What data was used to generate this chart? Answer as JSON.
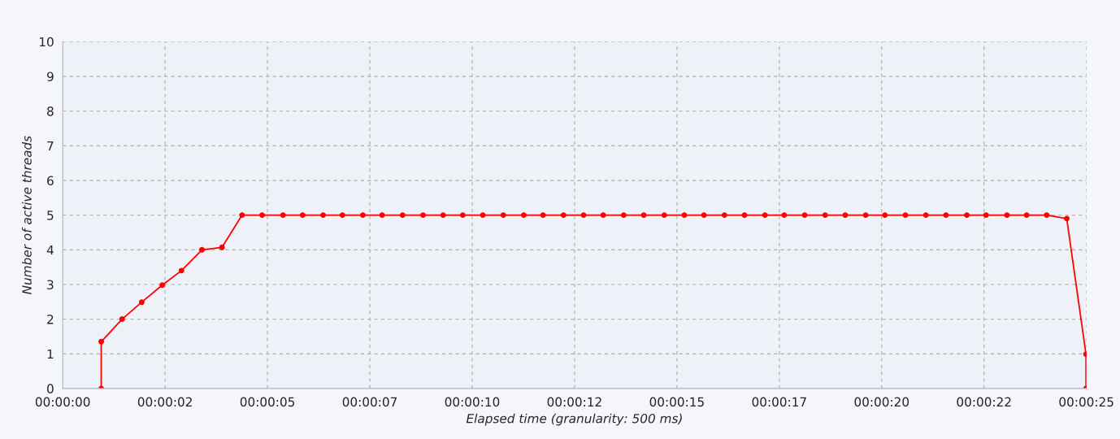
{
  "chart_data": {
    "type": "line",
    "xlabel": "Elapsed time (granularity: 500 ms)",
    "ylabel": "Number of active threads",
    "xlim": [
      0,
      25
    ],
    "ylim": [
      0,
      10
    ],
    "xticks": [
      {
        "value": 0,
        "label": "00:00:00"
      },
      {
        "value": 2.5,
        "label": "00:00:02"
      },
      {
        "value": 5,
        "label": "00:00:05"
      },
      {
        "value": 7.5,
        "label": "00:00:07"
      },
      {
        "value": 10,
        "label": "00:00:10"
      },
      {
        "value": 12.5,
        "label": "00:00:12"
      },
      {
        "value": 15,
        "label": "00:00:15"
      },
      {
        "value": 17.5,
        "label": "00:00:17"
      },
      {
        "value": 20,
        "label": "00:00:20"
      },
      {
        "value": 22.5,
        "label": "00:00:22"
      },
      {
        "value": 25,
        "label": "00:00:25"
      }
    ],
    "yticks": [
      0,
      1,
      2,
      3,
      4,
      5,
      6,
      7,
      8,
      9,
      10
    ],
    "grid": true,
    "marker": "circle",
    "line_style": "solid",
    "series": [
      {
        "color": "#ff0000",
        "x": [
          0.94,
          0.94,
          1.45,
          1.93,
          2.43,
          2.9,
          3.4,
          3.89,
          4.38,
          4.87,
          5.38,
          5.86,
          6.36,
          6.83,
          7.33,
          7.8,
          8.3,
          8.8,
          9.29,
          9.77,
          10.26,
          10.76,
          11.26,
          11.73,
          12.23,
          12.72,
          13.2,
          13.7,
          14.19,
          14.69,
          15.18,
          15.66,
          16.16,
          16.65,
          17.15,
          17.62,
          18.12,
          18.62,
          19.11,
          19.61,
          20.08,
          20.58,
          21.08,
          21.57,
          22.08,
          22.55,
          23.06,
          23.54,
          24.03,
          24.52,
          24.99,
          24.99
        ],
        "values": [
          0,
          1.35,
          2.0,
          2.49,
          2.98,
          3.4,
          4.0,
          4.07,
          5,
          5,
          5,
          5,
          5,
          5,
          5,
          5,
          5,
          5,
          5,
          5,
          5,
          5,
          5,
          5,
          5,
          5,
          5,
          5,
          5,
          5,
          5,
          5,
          5,
          5,
          5,
          5,
          5,
          5,
          5,
          5,
          5,
          5,
          5,
          5,
          5,
          5,
          5,
          5,
          5,
          4.9,
          0.99,
          0
        ]
      }
    ]
  }
}
